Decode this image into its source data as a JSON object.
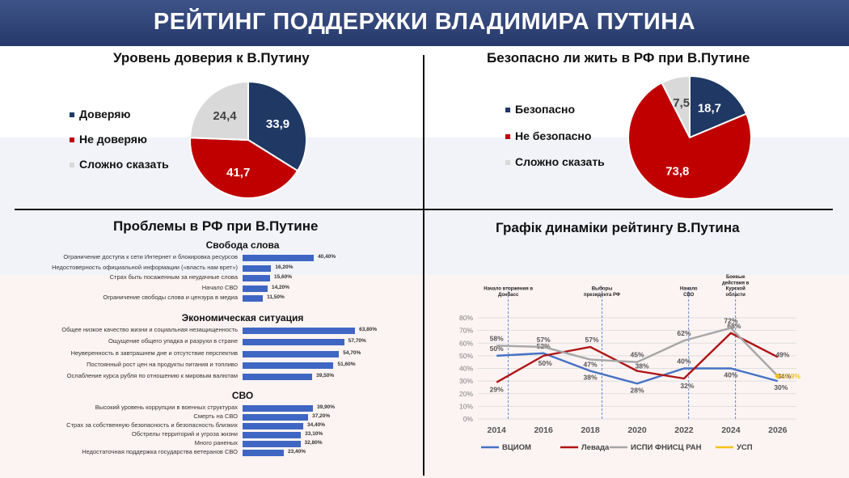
{
  "header": {
    "title": "РЕЙТИНГ ПОДДЕРЖКИ ВЛАДИМИРА ПУТИНА"
  },
  "colors": {
    "navy": "#1f3864",
    "red": "#c00000",
    "grey": "#d9d9d9",
    "bar": "#3f66c2",
    "vciom": "#4472c4",
    "levada": "#b01414",
    "ispi": "#a6a6a6",
    "usp": "#f2c21b"
  },
  "trust": {
    "title": "Уровень доверия к В.Путину",
    "legend": [
      "Доверяю",
      "Не доверяю",
      "Сложно сказать"
    ],
    "chart_data": {
      "type": "pie",
      "labels": [
        "Доверяю",
        "Не доверяю",
        "Сложно сказать"
      ],
      "values": [
        33.9,
        41.7,
        24.4
      ],
      "value_labels": [
        "33,9",
        "41,7",
        "24,4"
      ]
    }
  },
  "safety": {
    "title": "Безопасно ли жить в РФ при В.Путине",
    "legend": [
      "Безопасно",
      "Не безопасно",
      "Сложно сказать"
    ],
    "chart_data": {
      "type": "pie",
      "labels": [
        "Безопасно",
        "Не безопасно",
        "Сложно сказать"
      ],
      "values": [
        18.7,
        73.8,
        7.5
      ],
      "value_labels": [
        "18,7",
        "73,8",
        "7,5"
      ]
    }
  },
  "problems": {
    "title": "Проблемы в РФ при В.Путине",
    "chart_data": {
      "type": "bar",
      "groups": [
        {
          "title": "Свобода слова",
          "items": [
            {
              "label": "Ограничение доступа к сети Интернет и блокировка ресурсов",
              "value": 40.4,
              "text": "40,40%"
            },
            {
              "label": "Недостоверность официальной информации («власть нам врет»)",
              "value": 16.2,
              "text": "16,20%"
            },
            {
              "label": "Страх быть посаженным за неудачные слова",
              "value": 15.6,
              "text": "15,60%"
            },
            {
              "label": "Начало СВО",
              "value": 14.2,
              "text": "14,20%"
            },
            {
              "label": "Ограничение свободы слова и цензура в медиа",
              "value": 11.5,
              "text": "11,50%"
            }
          ]
        },
        {
          "title": "Экономическая ситуация",
          "items": [
            {
              "label": "Общее низкое качество жизни и социальная незащищенность",
              "value": 63.8,
              "text": "63,80%"
            },
            {
              "label": "Ощущение общего упадка и разруxи в стране",
              "value": 57.7,
              "text": "57,70%"
            },
            {
              "label": "Неуверенность в завтрашнем дне и отсутствие перспектив",
              "value": 54.7,
              "text": "54,70%"
            },
            {
              "label": "Постоянный рост цен на продукты питания и топливо",
              "value": 51.6,
              "text": "51,60%"
            },
            {
              "label": "Ослабление курса рубля по отношению к мировым валютам",
              "value": 39.5,
              "text": "39,50%"
            }
          ]
        },
        {
          "title": "СВО",
          "items": [
            {
              "label": "Высокий уровень коррупции в военных структурах",
              "value": 39.9,
              "text": "39,90%"
            },
            {
              "label": "Смерть на СВО",
              "value": 37.2,
              "text": "37,20%"
            },
            {
              "label": "Страх за собственную безопасность и безопасность близких",
              "value": 34.4,
              "text": "34,40%"
            },
            {
              "label": "Обстрелы территорий и угроза жизни",
              "value": 33.1,
              "text": "33,10%"
            },
            {
              "label": "Много раненых",
              "value": 32.8,
              "text": "32,80%"
            },
            {
              "label": "Недостаточная поддержка государства ветеранов СВО",
              "value": 23.4,
              "text": "23,40%"
            }
          ]
        }
      ]
    }
  },
  "dynamics": {
    "title": "Графік динаміки рейтингу В.Путина",
    "chart_data": {
      "type": "line",
      "x": [
        2014,
        2016,
        2018,
        2020,
        2022,
        2024,
        2026
      ],
      "xlim": [
        2013.2,
        2026.8
      ],
      "ylim": [
        0,
        80
      ],
      "yticks": [
        "0%",
        "10%",
        "20%",
        "30%",
        "40%",
        "50%",
        "60%",
        "70%",
        "80%"
      ],
      "grid": true,
      "legend_position": "bottom",
      "events": [
        {
          "x": 2014.5,
          "label": [
            "Начало вторжения в",
            "Донбасс"
          ]
        },
        {
          "x": 2018.5,
          "label": [
            "Выборы",
            "президента РФ"
          ]
        },
        {
          "x": 2022.2,
          "label": [
            "Начало",
            "СВО"
          ]
        },
        {
          "x": 2024.2,
          "label": [
            "Боевые",
            "действия в",
            "Курской",
            "области"
          ]
        }
      ],
      "series": [
        {
          "name": "ВЦИОМ",
          "color": "#4472c4",
          "points": [
            [
              2014,
              50
            ],
            [
              2016,
              52
            ],
            [
              2018,
              38
            ],
            [
              2020,
              28
            ],
            [
              2022,
              40
            ],
            [
              2024,
              40
            ],
            [
              2026,
              30
            ]
          ],
          "labels": [
            "50%",
            "52%",
            "38%",
            "28%",
            "",
            "40%",
            "30%"
          ]
        },
        {
          "name": "Левада",
          "color": "#b01414",
          "points": [
            [
              2014,
              29
            ],
            [
              2016,
              50
            ],
            [
              2018,
              57
            ],
            [
              2020,
              38
            ],
            [
              2022,
              32
            ],
            [
              2024,
              68
            ],
            [
              2026,
              49
            ]
          ],
          "labels": [
            "29%",
            "50%",
            "57%",
            "38%",
            "32%",
            "68%",
            "49%"
          ]
        },
        {
          "name": "ИСПИ ФНИСЦ РАН",
          "color": "#a6a6a6",
          "points": [
            [
              2014,
              58
            ],
            [
              2016,
              57
            ],
            [
              2018,
              47
            ],
            [
              2020,
              45
            ],
            [
              2022,
              62
            ],
            [
              2024,
              72
            ],
            [
              2026,
              34
            ]
          ],
          "labels": [
            "58%",
            "57%",
            "47%",
            "45%",
            "62%",
            "72%",
            "34%"
          ]
        },
        {
          "name": "УСП",
          "color": "#f2c21b",
          "points": [
            [
              2026,
              33.9
            ]
          ],
          "labels": [
            "33,9%"
          ]
        }
      ],
      "extra_labels": [
        {
          "x": 2022,
          "y": 40,
          "text": "40%"
        }
      ]
    }
  }
}
